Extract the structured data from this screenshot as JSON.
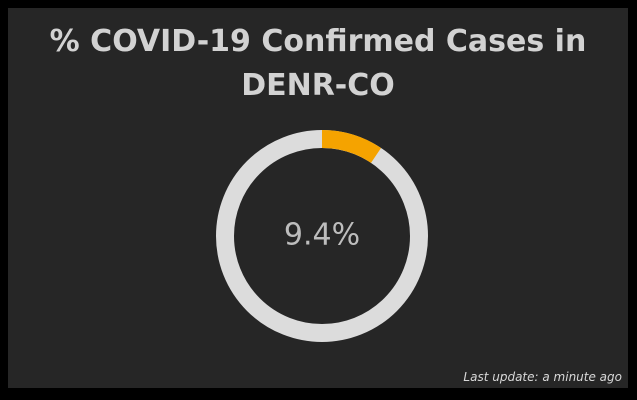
{
  "chart_data": {
    "type": "donut",
    "title": "% COVID-19 Confirmed Cases in DENR-CO",
    "values": [
      9.4
    ],
    "value_labels": [
      "9.4%"
    ],
    "color": "#f5a300",
    "track_color": "#dcdcdc",
    "ylim": [
      0,
      100
    ],
    "annotations": [
      "Last update: a minute ago"
    ]
  }
}
